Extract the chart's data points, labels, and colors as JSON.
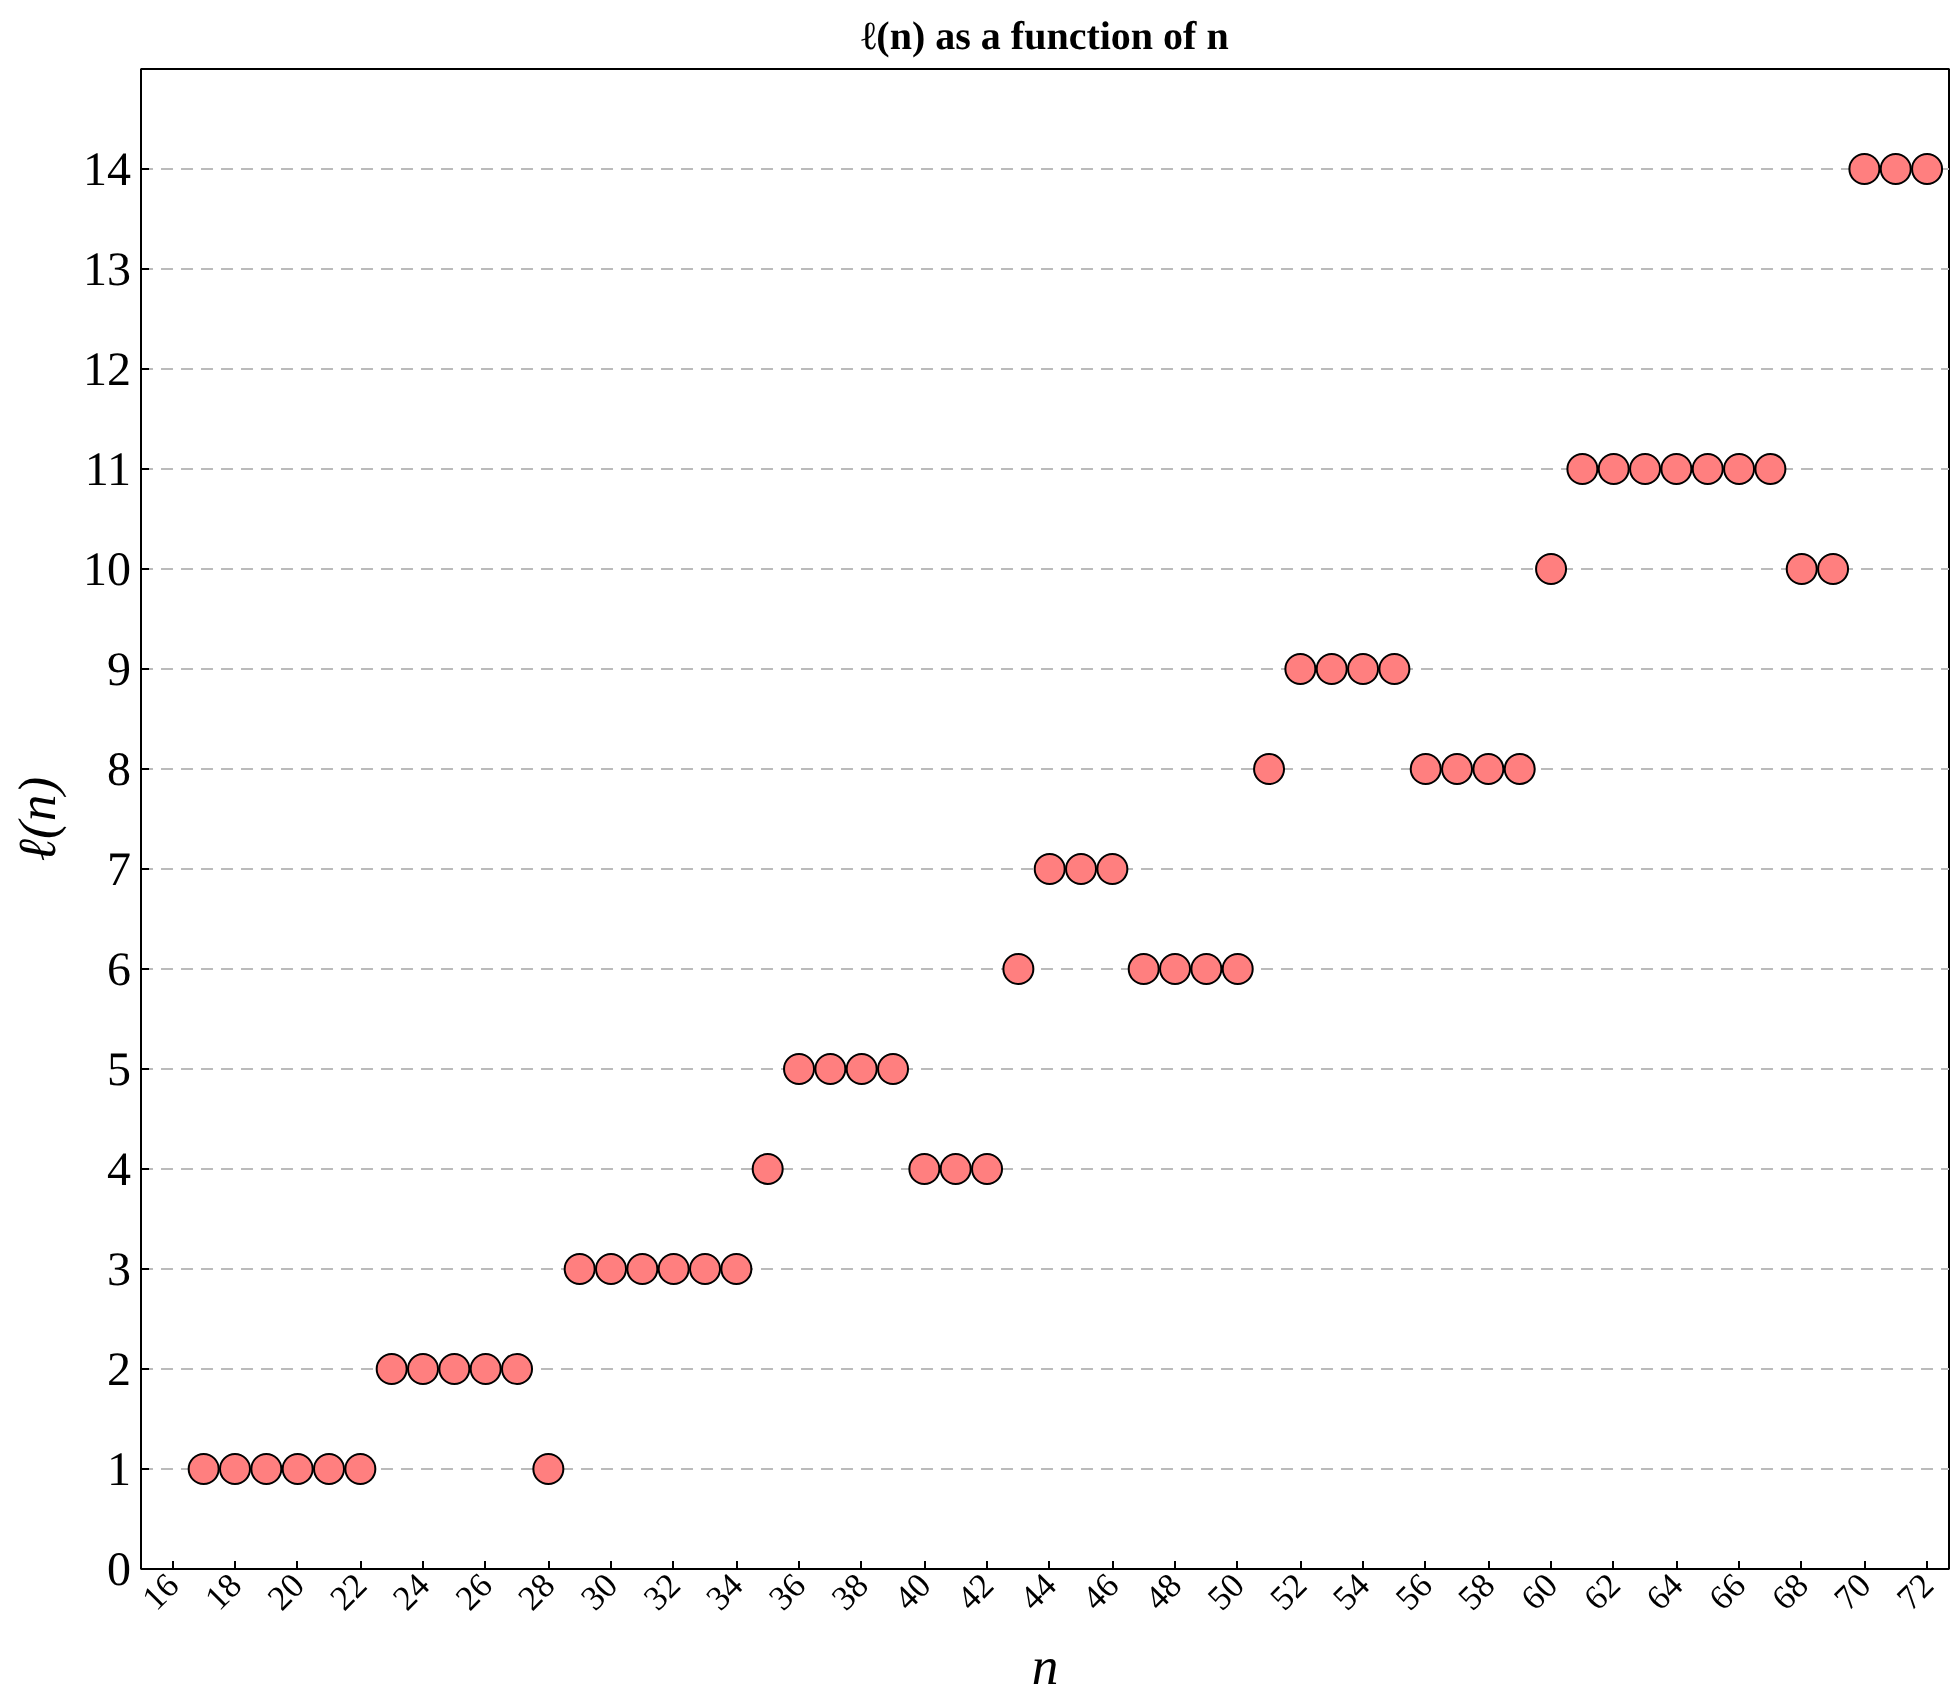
{
  "chart_data": {
    "type": "scatter",
    "title": "ℓ(n) as a function of n",
    "xlabel": "n",
    "ylabel": "ℓ(n)",
    "x": [
      17,
      18,
      19,
      20,
      21,
      22,
      23,
      24,
      25,
      26,
      27,
      28,
      29,
      30,
      31,
      32,
      33,
      34,
      35,
      36,
      37,
      38,
      39,
      40,
      41,
      42,
      43,
      44,
      45,
      46,
      47,
      48,
      49,
      50,
      51,
      52,
      53,
      54,
      55,
      56,
      57,
      58,
      59,
      60,
      61,
      62,
      63,
      64,
      65,
      66,
      67,
      68,
      69,
      70,
      71,
      72
    ],
    "series": [
      {
        "color": "#ff7f7f",
        "values": [
          1,
          1,
          1,
          1,
          1,
          1,
          2,
          2,
          2,
          2,
          2,
          1,
          3,
          3,
          3,
          3,
          3,
          3,
          4,
          5,
          5,
          5,
          5,
          4,
          4,
          4,
          6,
          7,
          7,
          7,
          6,
          6,
          6,
          6,
          8,
          9,
          9,
          9,
          9,
          8,
          8,
          8,
          8,
          10,
          11,
          11,
          11,
          11,
          11,
          11,
          11,
          10,
          10,
          14,
          14,
          14
        ]
      }
    ],
    "xlim": [
      15,
      72.7
    ],
    "ylim": [
      0,
      15
    ],
    "xticks": [
      16,
      18,
      20,
      22,
      24,
      26,
      28,
      30,
      32,
      34,
      36,
      38,
      40,
      42,
      44,
      46,
      48,
      50,
      52,
      54,
      56,
      58,
      60,
      62,
      64,
      66,
      68,
      70,
      72
    ],
    "yticks": [
      0,
      1,
      2,
      3,
      4,
      5,
      6,
      7,
      8,
      9,
      10,
      11,
      12,
      13,
      14
    ],
    "grid": "y",
    "marker": "circle"
  }
}
